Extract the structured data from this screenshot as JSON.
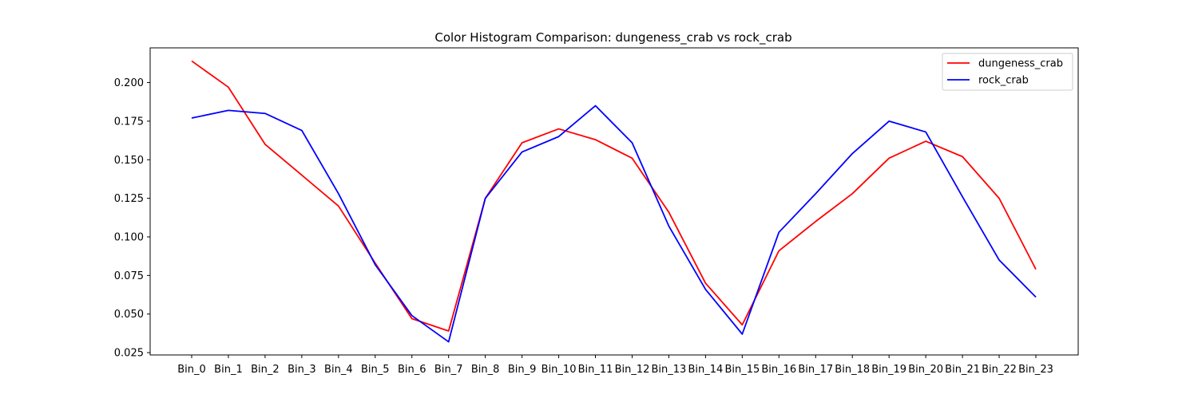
{
  "chart_data": {
    "type": "line",
    "title": "Color Histogram Comparison: dungeness_crab vs rock_crab",
    "xlabel": "",
    "ylabel": "",
    "categories": [
      "Bin_0",
      "Bin_1",
      "Bin_2",
      "Bin_3",
      "Bin_4",
      "Bin_5",
      "Bin_6",
      "Bin_7",
      "Bin_8",
      "Bin_9",
      "Bin_10",
      "Bin_11",
      "Bin_12",
      "Bin_13",
      "Bin_14",
      "Bin_15",
      "Bin_16",
      "Bin_17",
      "Bin_18",
      "Bin_19",
      "Bin_20",
      "Bin_21",
      "Bin_22",
      "Bin_23"
    ],
    "ylim": [
      0.0235,
      0.2225
    ],
    "yticks": [
      0.025,
      0.05,
      0.075,
      0.1,
      0.125,
      0.15,
      0.175,
      0.2
    ],
    "ytick_labels": [
      "0.025",
      "0.050",
      "0.075",
      "0.100",
      "0.125",
      "0.150",
      "0.175",
      "0.200"
    ],
    "grid": false,
    "legend_position": "top-right",
    "series": [
      {
        "name": "dungeness_crab",
        "color": "#ff0000",
        "values": [
          0.214,
          0.197,
          0.16,
          0.14,
          0.12,
          0.083,
          0.047,
          0.039,
          0.125,
          0.161,
          0.17,
          0.163,
          0.151,
          0.116,
          0.07,
          0.043,
          0.091,
          0.11,
          0.128,
          0.151,
          0.162,
          0.152,
          0.125,
          0.079
        ]
      },
      {
        "name": "rock_crab",
        "color": "#0000ff",
        "values": [
          0.177,
          0.182,
          0.18,
          0.169,
          0.128,
          0.082,
          0.049,
          0.032,
          0.125,
          0.155,
          0.165,
          0.185,
          0.161,
          0.107,
          0.066,
          0.037,
          0.103,
          0.128,
          0.154,
          0.175,
          0.168,
          0.126,
          0.085,
          0.061
        ]
      }
    ]
  }
}
